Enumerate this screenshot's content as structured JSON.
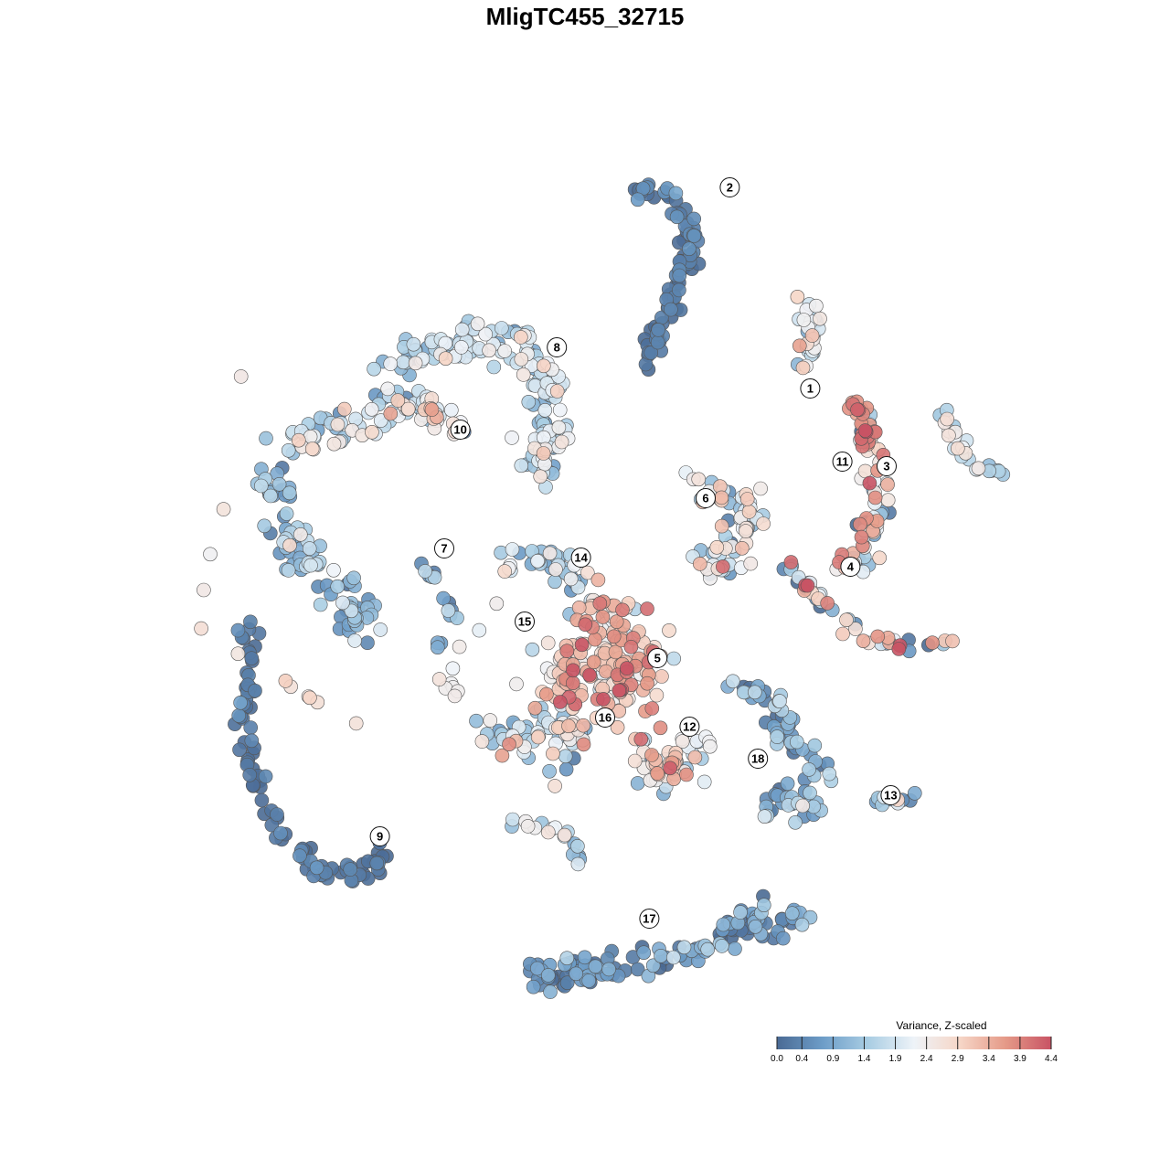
{
  "chart_data": {
    "type": "scatter",
    "title": "MligTC455_32715",
    "legend": {
      "title": "Variance, Z-scaled",
      "placement": "bottom-right",
      "ticks": [
        "0.0",
        "0.4",
        "0.9",
        "1.4",
        "1.9",
        "2.4",
        "2.9",
        "3.4",
        "3.9",
        "4.4"
      ],
      "range": [
        0.0,
        4.4
      ],
      "colors": [
        "#4a6a94",
        "#6d9dc8",
        "#a9cde3",
        "#eef3f8",
        "#f6d6c7",
        "#e59a88",
        "#c85364"
      ]
    },
    "clusters": [
      {
        "label": "1",
        "x": 0.56,
        "y": 0.43,
        "value": 2.2
      },
      {
        "label": "2",
        "x": 0.36,
        "y": 0.87,
        "value": 0.2
      },
      {
        "label": "3",
        "x": 0.75,
        "y": 0.26,
        "value": 1.6
      },
      {
        "label": "4",
        "x": 0.66,
        "y": 0.04,
        "value": 2.0
      },
      {
        "label": "5",
        "x": 0.18,
        "y": -0.16,
        "value": 3.0
      },
      {
        "label": "6",
        "x": 0.3,
        "y": 0.19,
        "value": 2.4
      },
      {
        "label": "7",
        "x": -0.35,
        "y": 0.08,
        "value": 1.0
      },
      {
        "label": "8",
        "x": -0.07,
        "y": 0.52,
        "value": 1.6
      },
      {
        "label": "9",
        "x": -0.51,
        "y": -0.55,
        "value": 0.1
      },
      {
        "label": "10",
        "x": -0.31,
        "y": 0.34,
        "value": 1.9
      },
      {
        "label": "11",
        "x": 0.64,
        "y": 0.27,
        "value": 3.6
      },
      {
        "label": "12",
        "x": 0.26,
        "y": -0.31,
        "value": 2.7
      },
      {
        "label": "13",
        "x": 0.76,
        "y": -0.46,
        "value": 1.7
      },
      {
        "label": "14",
        "x": -0.01,
        "y": 0.06,
        "value": 1.0
      },
      {
        "label": "15",
        "x": -0.15,
        "y": -0.08,
        "value": 1.0
      },
      {
        "label": "16",
        "x": 0.05,
        "y": -0.29,
        "value": 1.8
      },
      {
        "label": "17",
        "x": 0.16,
        "y": -0.73,
        "value": 0.4
      },
      {
        "label": "18",
        "x": 0.43,
        "y": -0.38,
        "value": 0.8
      }
    ]
  }
}
